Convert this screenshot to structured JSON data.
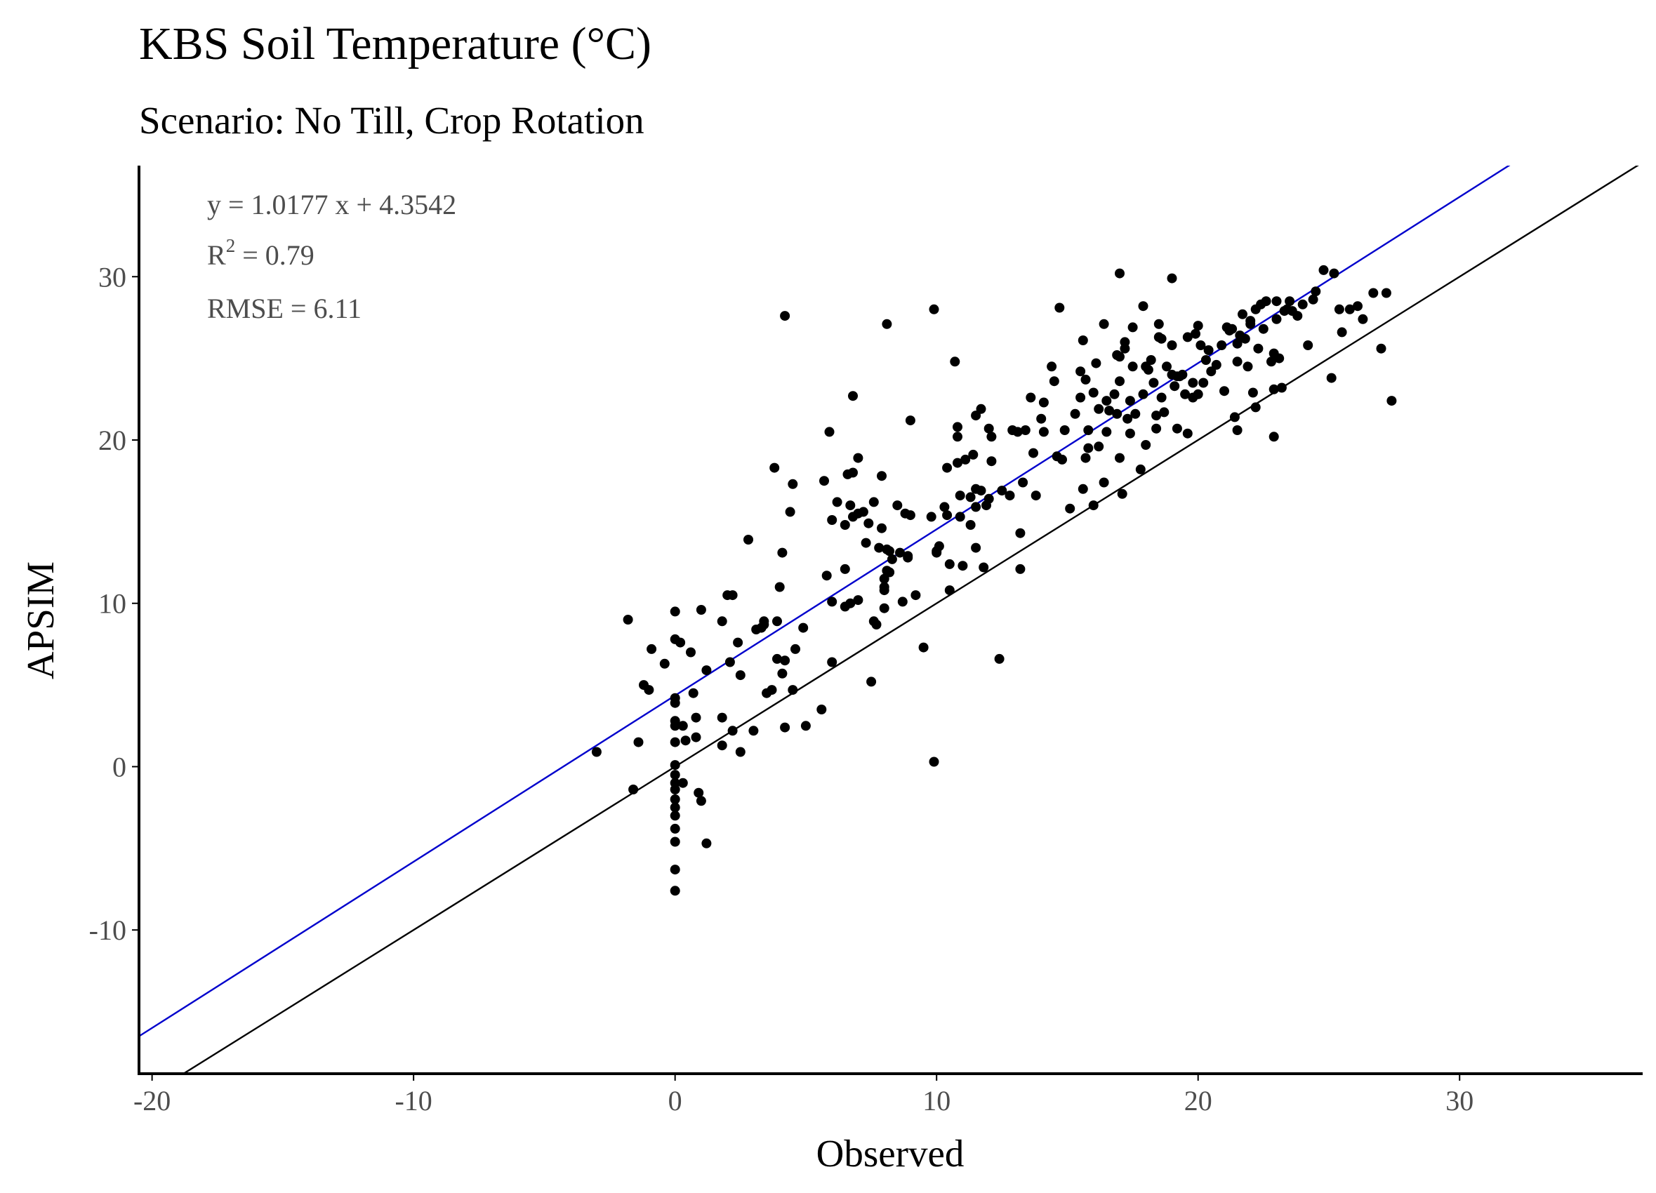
{
  "chart_data": {
    "type": "scatter",
    "title": "KBS Soil Temperature (°C)",
    "subtitle": "Scenario: No Till, Crop Rotation",
    "xlabel": "Observed",
    "ylabel": "APSIM",
    "xlim": [
      -20.5,
      37
    ],
    "ylim": [
      -18.8,
      36.8
    ],
    "xticks": [
      -20,
      -10,
      0,
      10,
      20,
      30
    ],
    "yticks": [
      -10,
      0,
      10,
      20,
      30
    ],
    "xtick_labels": [
      "-20",
      "-10",
      "0",
      "10",
      "20",
      "30"
    ],
    "ytick_labels": [
      "-10",
      "0",
      "10",
      "20",
      "30"
    ],
    "grid": false,
    "annotations": {
      "equation": "y = 1.0177 x +  4.3542",
      "r2_base": "R",
      "r2_sup": "2",
      "r2_rest": " = 0.79",
      "rmse": "RMSE = 6.11"
    },
    "regression_line": {
      "slope": 1.0177,
      "intercept": 4.3542,
      "color": "#0000cc"
    },
    "identity_line": {
      "slope": 1,
      "intercept": 0,
      "color": "#000000"
    },
    "point_color": "#000000",
    "points": [
      [
        -3.0,
        0.9
      ],
      [
        -1.8,
        9.0
      ],
      [
        -1.6,
        -1.4
      ],
      [
        -1.4,
        1.5
      ],
      [
        -1.2,
        5.0
      ],
      [
        -1.0,
        4.7
      ],
      [
        -0.9,
        7.2
      ],
      [
        -0.4,
        6.3
      ],
      [
        0,
        9.5
      ],
      [
        0,
        7.8
      ],
      [
        0,
        4.2
      ],
      [
        0,
        3.9
      ],
      [
        0,
        2.8
      ],
      [
        0,
        2.5
      ],
      [
        0,
        1.5
      ],
      [
        0,
        0.1
      ],
      [
        0,
        -0.5
      ],
      [
        0,
        -1.0
      ],
      [
        0,
        -1.4
      ],
      [
        0,
        -2.0
      ],
      [
        0,
        -2.5
      ],
      [
        0,
        -3.0
      ],
      [
        0,
        -3.8
      ],
      [
        0,
        -4.6
      ],
      [
        0,
        -6.3
      ],
      [
        0,
        -7.6
      ],
      [
        0.2,
        7.6
      ],
      [
        0.3,
        2.5
      ],
      [
        0.3,
        -1.0
      ],
      [
        0.4,
        1.6
      ],
      [
        0.6,
        7.0
      ],
      [
        0.7,
        4.5
      ],
      [
        0.8,
        3.0
      ],
      [
        0.8,
        1.8
      ],
      [
        0.9,
        -1.6
      ],
      [
        1.0,
        9.6
      ],
      [
        1.0,
        -2.1
      ],
      [
        1.2,
        5.9
      ],
      [
        1.2,
        -4.7
      ],
      [
        1.8,
        8.9
      ],
      [
        1.8,
        3.0
      ],
      [
        1.8,
        1.3
      ],
      [
        2.0,
        10.5
      ],
      [
        2.1,
        6.4
      ],
      [
        2.2,
        10.5
      ],
      [
        2.2,
        2.2
      ],
      [
        2.4,
        7.6
      ],
      [
        2.5,
        5.6
      ],
      [
        2.5,
        0.9
      ],
      [
        2.8,
        13.9
      ],
      [
        3.0,
        2.2
      ],
      [
        3.1,
        8.4
      ],
      [
        3.3,
        8.5
      ],
      [
        3.4,
        8.9
      ],
      [
        3.4,
        8.7
      ],
      [
        3.5,
        4.5
      ],
      [
        3.7,
        4.7
      ],
      [
        3.8,
        18.3
      ],
      [
        3.9,
        6.6
      ],
      [
        3.9,
        8.9
      ],
      [
        4.0,
        11.0
      ],
      [
        4.1,
        13.1
      ],
      [
        4.1,
        5.7
      ],
      [
        4.2,
        27.6
      ],
      [
        4.2,
        6.5
      ],
      [
        4.2,
        2.4
      ],
      [
        4.4,
        15.6
      ],
      [
        4.5,
        17.3
      ],
      [
        4.5,
        4.7
      ],
      [
        4.6,
        7.2
      ],
      [
        4.9,
        8.5
      ],
      [
        5.0,
        2.5
      ],
      [
        5.6,
        3.5
      ],
      [
        5.7,
        17.5
      ],
      [
        5.8,
        11.7
      ],
      [
        5.9,
        20.5
      ],
      [
        6.0,
        15.1
      ],
      [
        6.0,
        10.1
      ],
      [
        6.0,
        6.4
      ],
      [
        6.2,
        16.2
      ],
      [
        6.5,
        14.8
      ],
      [
        6.5,
        12.1
      ],
      [
        6.5,
        9.8
      ],
      [
        6.6,
        17.9
      ],
      [
        6.7,
        16.0
      ],
      [
        6.7,
        10.0
      ],
      [
        6.8,
        18.0
      ],
      [
        6.8,
        22.7
      ],
      [
        6.8,
        15.3
      ],
      [
        7.0,
        18.9
      ],
      [
        7.0,
        15.5
      ],
      [
        7.0,
        10.2
      ],
      [
        7.2,
        15.6
      ],
      [
        7.3,
        13.7
      ],
      [
        7.4,
        14.9
      ],
      [
        7.5,
        5.2
      ],
      [
        7.6,
        16.2
      ],
      [
        7.6,
        8.9
      ],
      [
        7.7,
        8.7
      ],
      [
        7.8,
        13.4
      ],
      [
        7.9,
        17.8
      ],
      [
        7.9,
        14.6
      ],
      [
        8.0,
        11.5
      ],
      [
        8.0,
        11.0
      ],
      [
        8.0,
        10.8
      ],
      [
        8.0,
        9.7
      ],
      [
        8.1,
        27.1
      ],
      [
        8.1,
        13.3
      ],
      [
        8.1,
        12.0
      ],
      [
        8.2,
        13.2
      ],
      [
        8.2,
        11.9
      ],
      [
        8.3,
        12.7
      ],
      [
        8.5,
        16.0
      ],
      [
        8.6,
        13.1
      ],
      [
        8.7,
        10.1
      ],
      [
        8.8,
        15.5
      ],
      [
        8.9,
        12.9
      ],
      [
        8.9,
        12.8
      ],
      [
        9.0,
        21.2
      ],
      [
        9.0,
        15.4
      ],
      [
        9.2,
        10.5
      ],
      [
        9.5,
        7.3
      ],
      [
        9.8,
        15.3
      ],
      [
        9.9,
        28.0
      ],
      [
        9.9,
        0.3
      ],
      [
        10.0,
        13.1
      ],
      [
        10.0,
        13.2
      ],
      [
        10.1,
        13.5
      ],
      [
        10.3,
        15.9
      ],
      [
        10.4,
        18.3
      ],
      [
        10.4,
        15.4
      ],
      [
        10.5,
        12.4
      ],
      [
        10.5,
        10.8
      ],
      [
        10.7,
        24.8
      ],
      [
        10.8,
        20.8
      ],
      [
        10.8,
        20.2
      ],
      [
        10.8,
        18.6
      ],
      [
        10.9,
        16.6
      ],
      [
        10.9,
        15.3
      ],
      [
        11.0,
        12.3
      ],
      [
        11.1,
        18.8
      ],
      [
        11.3,
        16.5
      ],
      [
        11.3,
        14.8
      ],
      [
        11.4,
        19.1
      ],
      [
        11.5,
        17.0
      ],
      [
        11.5,
        21.5
      ],
      [
        11.5,
        15.9
      ],
      [
        11.5,
        13.4
      ],
      [
        11.7,
        21.9
      ],
      [
        11.7,
        16.9
      ],
      [
        11.8,
        12.2
      ],
      [
        11.9,
        16.0
      ],
      [
        12.0,
        16.4
      ],
      [
        12.0,
        20.7
      ],
      [
        12.1,
        20.2
      ],
      [
        12.1,
        18.7
      ],
      [
        12.4,
        6.6
      ],
      [
        12.5,
        16.9
      ],
      [
        12.8,
        16.6
      ],
      [
        12.9,
        20.6
      ],
      [
        13.1,
        20.5
      ],
      [
        13.2,
        14.3
      ],
      [
        13.2,
        12.1
      ],
      [
        13.3,
        17.4
      ],
      [
        13.4,
        20.6
      ],
      [
        13.6,
        22.6
      ],
      [
        13.7,
        19.2
      ],
      [
        13.8,
        16.6
      ],
      [
        14.0,
        21.3
      ],
      [
        14.1,
        20.5
      ],
      [
        14.1,
        22.3
      ],
      [
        14.4,
        24.5
      ],
      [
        14.5,
        23.6
      ],
      [
        14.6,
        19.0
      ],
      [
        14.7,
        28.1
      ],
      [
        14.8,
        18.8
      ],
      [
        14.9,
        20.6
      ],
      [
        15.1,
        15.8
      ],
      [
        15.3,
        21.6
      ],
      [
        15.5,
        22.6
      ],
      [
        15.5,
        24.2
      ],
      [
        15.6,
        26.1
      ],
      [
        15.6,
        17.0
      ],
      [
        15.7,
        18.9
      ],
      [
        15.7,
        23.7
      ],
      [
        15.8,
        20.6
      ],
      [
        15.8,
        19.5
      ],
      [
        16.0,
        22.9
      ],
      [
        16.0,
        16.0
      ],
      [
        16.1,
        24.7
      ],
      [
        16.2,
        21.9
      ],
      [
        16.2,
        19.6
      ],
      [
        16.4,
        27.1
      ],
      [
        16.4,
        17.4
      ],
      [
        16.5,
        22.4
      ],
      [
        16.5,
        20.5
      ],
      [
        16.6,
        21.8
      ],
      [
        16.8,
        22.8
      ],
      [
        16.9,
        25.2
      ],
      [
        16.9,
        21.6
      ],
      [
        17.0,
        30.2
      ],
      [
        17.0,
        25.1
      ],
      [
        17.0,
        23.6
      ],
      [
        17.0,
        18.9
      ],
      [
        17.1,
        16.7
      ],
      [
        17.2,
        26.0
      ],
      [
        17.2,
        25.6
      ],
      [
        17.3,
        21.3
      ],
      [
        17.4,
        20.4
      ],
      [
        17.4,
        22.4
      ],
      [
        17.5,
        26.9
      ],
      [
        17.5,
        24.5
      ],
      [
        17.6,
        21.6
      ],
      [
        17.8,
        18.2
      ],
      [
        17.9,
        28.2
      ],
      [
        17.9,
        22.8
      ],
      [
        18.0,
        24.5
      ],
      [
        18.0,
        19.7
      ],
      [
        18.1,
        24.3
      ],
      [
        18.2,
        24.9
      ],
      [
        18.3,
        23.5
      ],
      [
        18.4,
        21.5
      ],
      [
        18.4,
        20.7
      ],
      [
        18.5,
        27.1
      ],
      [
        18.5,
        26.3
      ],
      [
        18.6,
        22.6
      ],
      [
        18.6,
        26.2
      ],
      [
        18.7,
        21.7
      ],
      [
        18.8,
        24.5
      ],
      [
        19.0,
        29.9
      ],
      [
        19.0,
        24.0
      ],
      [
        19.0,
        25.8
      ],
      [
        19.1,
        23.3
      ],
      [
        19.2,
        23.9
      ],
      [
        19.2,
        20.7
      ],
      [
        19.3,
        23.9
      ],
      [
        19.4,
        24.0
      ],
      [
        19.5,
        22.8
      ],
      [
        19.6,
        26.3
      ],
      [
        19.6,
        20.4
      ],
      [
        19.8,
        22.6
      ],
      [
        19.8,
        23.5
      ],
      [
        19.9,
        26.5
      ],
      [
        20.0,
        22.8
      ],
      [
        20.0,
        27.0
      ],
      [
        20.1,
        25.8
      ],
      [
        20.2,
        23.5
      ],
      [
        20.3,
        24.9
      ],
      [
        20.4,
        25.5
      ],
      [
        20.5,
        24.2
      ],
      [
        20.7,
        24.6
      ],
      [
        20.9,
        25.8
      ],
      [
        21.0,
        23.0
      ],
      [
        21.1,
        26.9
      ],
      [
        21.2,
        26.7
      ],
      [
        21.3,
        26.8
      ],
      [
        21.4,
        21.4
      ],
      [
        21.5,
        20.6
      ],
      [
        21.5,
        25.9
      ],
      [
        21.5,
        24.8
      ],
      [
        21.6,
        26.4
      ],
      [
        21.7,
        27.7
      ],
      [
        21.8,
        26.2
      ],
      [
        21.9,
        24.5
      ],
      [
        22.0,
        27.3
      ],
      [
        22.0,
        27.1
      ],
      [
        22.1,
        22.9
      ],
      [
        22.2,
        28.0
      ],
      [
        22.2,
        22.0
      ],
      [
        22.3,
        25.6
      ],
      [
        22.4,
        28.3
      ],
      [
        22.5,
        26.8
      ],
      [
        22.6,
        28.5
      ],
      [
        22.8,
        24.8
      ],
      [
        22.9,
        23.1
      ],
      [
        22.9,
        25.3
      ],
      [
        22.9,
        20.2
      ],
      [
        23.0,
        27.4
      ],
      [
        23.0,
        28.5
      ],
      [
        23.1,
        25.0
      ],
      [
        23.2,
        23.2
      ],
      [
        23.3,
        27.9
      ],
      [
        23.4,
        28.0
      ],
      [
        23.5,
        28.5
      ],
      [
        23.6,
        27.9
      ],
      [
        23.8,
        27.6
      ],
      [
        24.0,
        28.3
      ],
      [
        24.2,
        25.8
      ],
      [
        24.4,
        28.6
      ],
      [
        24.5,
        29.1
      ],
      [
        24.8,
        30.4
      ],
      [
        25.1,
        23.8
      ],
      [
        25.2,
        30.2
      ],
      [
        25.4,
        28.0
      ],
      [
        25.5,
        26.6
      ],
      [
        25.8,
        28.0
      ],
      [
        26.1,
        28.2
      ],
      [
        26.3,
        27.4
      ],
      [
        26.7,
        29.0
      ],
      [
        27.0,
        25.6
      ],
      [
        27.2,
        29.0
      ],
      [
        27.4,
        22.4
      ]
    ]
  }
}
